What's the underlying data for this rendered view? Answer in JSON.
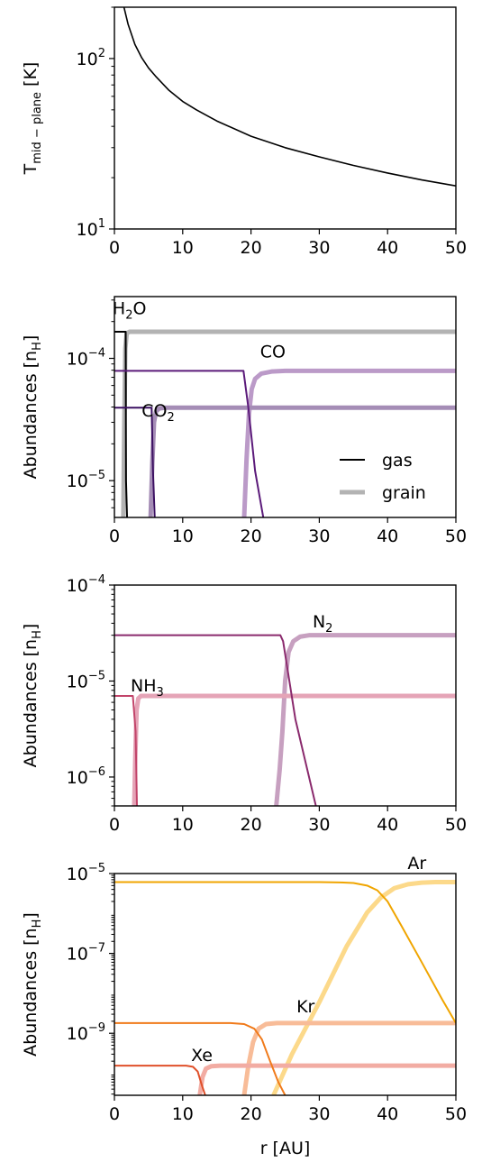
{
  "chart_data": [
    {
      "type": "line",
      "id": "temperature",
      "ylabel": "T",
      "ylabel_sub": "mid − plane",
      "ylabel_unit": " [K]",
      "yscale": "log",
      "xlim": [
        0,
        50
      ],
      "ylim": [
        10,
        200
      ],
      "xticks": [
        "0",
        "10",
        "20",
        "30",
        "40",
        "50"
      ],
      "yticks": [
        {
          "base": "10",
          "exp": "1",
          "value": 10
        },
        {
          "base": "10",
          "exp": "2",
          "value": 100
        }
      ],
      "series": [
        {
          "color": "#000000",
          "width": 1.6,
          "x": [
            1.4,
            2,
            3,
            4,
            5,
            6,
            8,
            10,
            12,
            15,
            20,
            25,
            30,
            35,
            40,
            45,
            50
          ],
          "y": [
            200,
            159,
            121,
            101,
            88,
            79,
            65,
            56,
            50,
            43,
            35,
            30,
            26.5,
            23.6,
            21.3,
            19.4,
            17.9
          ]
        }
      ]
    },
    {
      "type": "line",
      "id": "h2o-co-co2",
      "ylabel": "Abundances [n",
      "ylabel_sub": "H",
      "ylabel_unit": "]",
      "yscale": "log",
      "xlim": [
        0,
        50
      ],
      "ylim": [
        5e-06,
        0.00032
      ],
      "xticks": [
        "0",
        "10",
        "20",
        "30",
        "40",
        "50"
      ],
      "yticks": [
        {
          "base": "10",
          "exp": "−5",
          "value": 1e-05
        },
        {
          "base": "10",
          "exp": "−4",
          "value": 0.0001
        }
      ],
      "legend": {
        "placement": "lower-right",
        "entries": [
          {
            "label": "gas",
            "color": "#000000",
            "width": 2
          },
          {
            "label": "grain",
            "color": "#b3b3b3",
            "width": 5
          }
        ]
      },
      "labels": [
        {
          "text": "H",
          "sub": "2",
          "tail": "O",
          "x": 2.2,
          "y": 0.00023,
          "color": "#000000"
        },
        {
          "text": "CO",
          "sub": "",
          "tail": "",
          "x": 23.2,
          "y": 0.000102,
          "color": "#5b1a7a"
        },
        {
          "text": "CO",
          "sub": "2",
          "tail": "",
          "x": 6.4,
          "y": 3.35e-05,
          "color": "#5b1a7a"
        }
      ],
      "series": [
        {
          "name": "H2O grain",
          "color": "#b3b3b3",
          "width": 5,
          "x": [
            1.3,
            1.45,
            1.6,
            1.8,
            2.2,
            50
          ],
          "y": [
            5e-06,
            3e-05,
            0.00012,
            0.00016,
            0.000165,
            0.000165
          ]
        },
        {
          "name": "CO grain",
          "color": "#bb9ac8",
          "width": 5,
          "x": [
            19.0,
            19.35,
            19.7,
            20.1,
            20.6,
            21.5,
            23,
            25,
            50
          ],
          "y": [
            5e-06,
            1.5e-05,
            3.5e-05,
            5.6e-05,
            6.8e-05,
            7.5e-05,
            7.8e-05,
            7.9e-05,
            7.9e-05
          ]
        },
        {
          "name": "CO2 grain",
          "color": "#a58db6",
          "width": 5,
          "x": [
            5.3,
            5.55,
            5.8,
            6.1,
            6.6,
            7.5,
            50
          ],
          "y": [
            5e-06,
            1.4e-05,
            3e-05,
            3.7e-05,
            3.9e-05,
            3.95e-05,
            3.95e-05
          ]
        },
        {
          "name": "H2O gas",
          "color": "#000000",
          "width": 2,
          "x": [
            0,
            1.65,
            1.7,
            1.85
          ],
          "y": [
            0.000165,
            0.000165,
            1e-05,
            5e-06
          ]
        },
        {
          "name": "CO gas",
          "color": "#5b1a7a",
          "width": 2,
          "x": [
            0,
            18.9,
            19.6,
            20.6,
            21.8
          ],
          "y": [
            7.9e-05,
            7.9e-05,
            4e-05,
            1.2e-05,
            5e-06
          ]
        },
        {
          "name": "CO2 gas",
          "color": "#3c1062",
          "width": 2,
          "x": [
            0,
            5.45,
            5.65,
            5.9
          ],
          "y": [
            3.95e-05,
            3.95e-05,
            1.2e-05,
            5e-06
          ]
        }
      ]
    },
    {
      "type": "line",
      "id": "n2-nh3",
      "ylabel": "Abundances [n",
      "ylabel_sub": "H",
      "ylabel_unit": "]",
      "yscale": "log",
      "xlim": [
        0,
        50
      ],
      "ylim": [
        5e-07,
        0.0001
      ],
      "xticks": [
        "0",
        "10",
        "20",
        "30",
        "40",
        "50"
      ],
      "yticks": [
        {
          "base": "10",
          "exp": "−6",
          "value": 1e-06
        },
        {
          "base": "10",
          "exp": "−5",
          "value": 1e-05
        },
        {
          "base": "10",
          "exp": "−4",
          "value": 0.0001
        }
      ],
      "labels": [
        {
          "text": "N",
          "sub": "2",
          "tail": "",
          "x": 30.5,
          "y": 3.6e-05,
          "color": "#8a2a6d"
        },
        {
          "text": "NH",
          "sub": "3",
          "tail": "",
          "x": 4.8,
          "y": 7.8e-06,
          "color": "#c2446a"
        }
      ],
      "series": [
        {
          "name": "N2 grain",
          "color": "#c7a0c0",
          "width": 5,
          "x": [
            23.7,
            24.2,
            24.6,
            25.0,
            25.5,
            26.2,
            27.2,
            28.5,
            50
          ],
          "y": [
            5e-07,
            1.2e-06,
            3e-06,
            1e-05,
            2e-05,
            2.6e-05,
            2.9e-05,
            3e-05,
            3e-05
          ]
        },
        {
          "name": "NH3 grain",
          "color": "#e5a4b7",
          "width": 5,
          "x": [
            2.9,
            3.05,
            3.25,
            3.5,
            3.9,
            50
          ],
          "y": [
            5e-07,
            1.5e-06,
            5e-06,
            6.6e-06,
            7e-06,
            7e-06
          ]
        },
        {
          "name": "N2 gas",
          "color": "#8a2a6d",
          "width": 2,
          "x": [
            0,
            24.3,
            24.7,
            26.5,
            29.5
          ],
          "y": [
            3e-05,
            3e-05,
            2.6e-05,
            4e-06,
            5e-07
          ]
        },
        {
          "name": "NH3 gas",
          "color": "#c2446a",
          "width": 2,
          "x": [
            0,
            2.7,
            3.1,
            3.3
          ],
          "y": [
            7e-06,
            7e-06,
            3e-06,
            5e-07
          ]
        }
      ]
    },
    {
      "type": "line",
      "id": "noble-gases",
      "ylabel": "Abundances [n",
      "ylabel_sub": "H",
      "ylabel_unit": "]",
      "xlabel": "r [AU]",
      "yscale": "log",
      "xlim": [
        0,
        50
      ],
      "ylim": [
        2.8e-11,
        1e-05
      ],
      "xticks": [
        "0",
        "10",
        "20",
        "30",
        "40",
        "50"
      ],
      "yticks": [
        {
          "base": "10",
          "exp": "−9",
          "value": 1e-09
        },
        {
          "base": "10",
          "exp": "−7",
          "value": 1e-07
        },
        {
          "base": "10",
          "exp": "−5",
          "value": 1e-05
        }
      ],
      "labels": [
        {
          "text": "Ar",
          "sub": "",
          "tail": "",
          "x": 44.3,
          "y": 1.3e-05,
          "color": "#f0a500"
        },
        {
          "text": "Kr",
          "sub": "",
          "tail": "",
          "x": 28.0,
          "y": 3.3e-09,
          "color": "#f07a1a"
        },
        {
          "text": "Xe",
          "sub": "",
          "tail": "",
          "x": 12.8,
          "y": 2e-10,
          "color": "#e0502a"
        }
      ],
      "series": [
        {
          "name": "Ar grain",
          "color": "#fcd98a",
          "width": 5,
          "x": [
            23.3,
            26,
            30,
            34,
            37,
            39,
            41,
            43,
            45,
            47,
            50
          ],
          "y": [
            2.8e-11,
            3e-10,
            6e-09,
            1.5e-07,
            1.05e-06,
            2.5e-06,
            4.3e-06,
            5.4e-06,
            5.9e-06,
            6.1e-06,
            6.1e-06
          ]
        },
        {
          "name": "Kr grain",
          "color": "#f8bc98",
          "width": 5,
          "x": [
            19.0,
            19.6,
            20.3,
            21.1,
            22.2,
            23.8,
            26,
            50
          ],
          "y": [
            2.8e-11,
            1.5e-10,
            6e-10,
            1.3e-09,
            1.7e-09,
            1.8e-09,
            1.8e-09,
            1.8e-09
          ]
        },
        {
          "name": "Xe grain",
          "color": "#f2aca3",
          "width": 5,
          "x": [
            12.5,
            12.9,
            13.4,
            14.2,
            15.5,
            50
          ],
          "y": [
            2.8e-11,
            8e-11,
            1.3e-10,
            1.5e-10,
            1.55e-10,
            1.55e-10
          ]
        },
        {
          "name": "Ar gas",
          "color": "#f0a500",
          "width": 2,
          "x": [
            0,
            30,
            33,
            35,
            37,
            38.5,
            40,
            42,
            45,
            48,
            50
          ],
          "y": [
            6.1e-06,
            6.1e-06,
            6e-06,
            5.8e-06,
            5e-06,
            3.8e-06,
            2e-06,
            5e-07,
            6e-08,
            7e-09,
            1.8e-09
          ]
        },
        {
          "name": "Kr gas",
          "color": "#f07a1a",
          "width": 2,
          "x": [
            0,
            17,
            19,
            20.5,
            21.6,
            22.8,
            24.0,
            25.0
          ],
          "y": [
            1.8e-09,
            1.8e-09,
            1.7e-09,
            1.3e-09,
            7e-10,
            2e-10,
            6e-11,
            2.8e-11
          ]
        },
        {
          "name": "Xe gas",
          "color": "#e0502a",
          "width": 2,
          "x": [
            0,
            10.5,
            11.5,
            12.2,
            12.8,
            13.3
          ],
          "y": [
            1.55e-10,
            1.55e-10,
            1.45e-10,
            1.1e-10,
            5e-11,
            2.8e-11
          ]
        }
      ]
    }
  ]
}
